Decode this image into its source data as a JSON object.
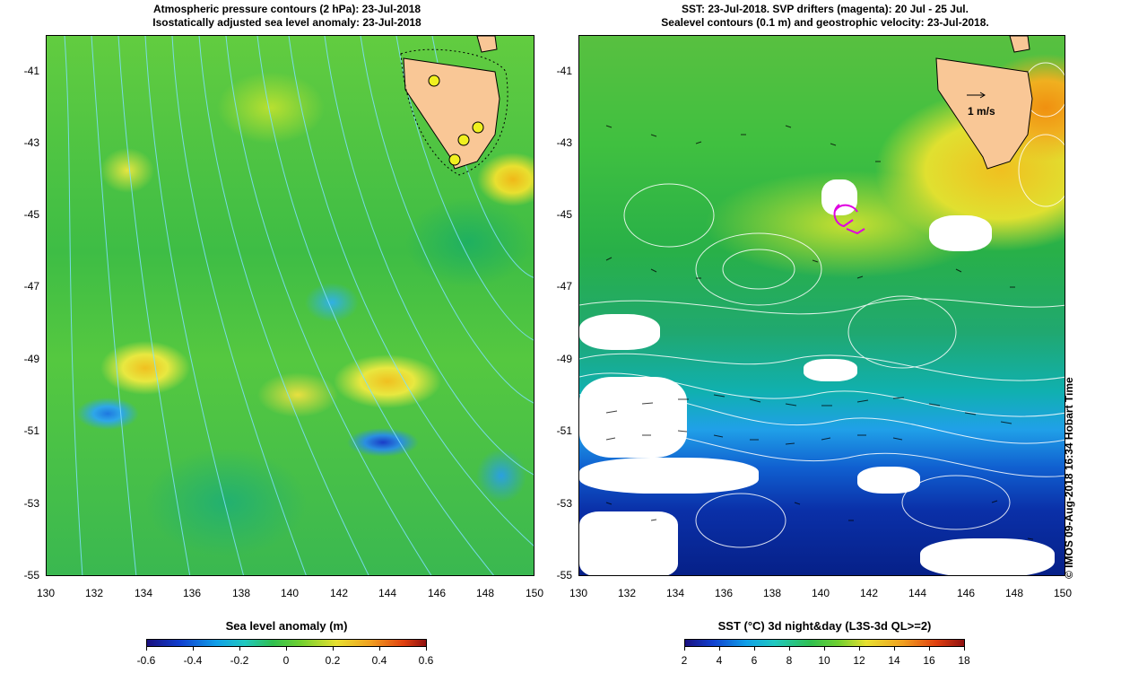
{
  "left_panel": {
    "title_line1": "Atmospheric pressure contours (2 hPa): 23-Jul-2018",
    "title_line2": "Isostatically adjusted sea level anomaly: 23-Jul-2018",
    "y_ticks": [
      "-41",
      "-43",
      "-45",
      "-47",
      "-49",
      "-51",
      "-53",
      "-55"
    ],
    "x_ticks": [
      "130",
      "132",
      "134",
      "136",
      "138",
      "140",
      "142",
      "144",
      "146",
      "148",
      "150"
    ],
    "colorbar_title": "Sea level anomaly (m)",
    "colorbar_ticks": [
      "-0.6",
      "-0.4",
      "-0.2",
      "0",
      "0.2",
      "0.4",
      "0.6"
    ]
  },
  "right_panel": {
    "title_line1": "SST: 23-Jul-2018. SVP drifters (magenta): 20 Jul - 25 Jul.",
    "title_line2": "Sealevel contours (0.1 m) and geostrophic velocity: 23-Jul-2018.",
    "y_ticks": [
      "-41",
      "-43",
      "-45",
      "-47",
      "-49",
      "-51",
      "-53",
      "-55"
    ],
    "x_ticks": [
      "130",
      "132",
      "134",
      "136",
      "138",
      "140",
      "142",
      "144",
      "146",
      "148",
      "150"
    ],
    "velocity_scale_label": "1 m/s",
    "colorbar_title": "SST (°C) 3d night&day (L3S-3d QL>=2)",
    "colorbar_ticks": [
      "2",
      "4",
      "6",
      "8",
      "10",
      "12",
      "14",
      "16",
      "18"
    ]
  },
  "credit": "© IMOS 09-Aug-2018 16:34 Hobart Time",
  "colors": {
    "land": "#f9c796",
    "contour": "#7fe0ff",
    "drifter": "#e000e0",
    "tide_gauge": "#f0f020"
  }
}
